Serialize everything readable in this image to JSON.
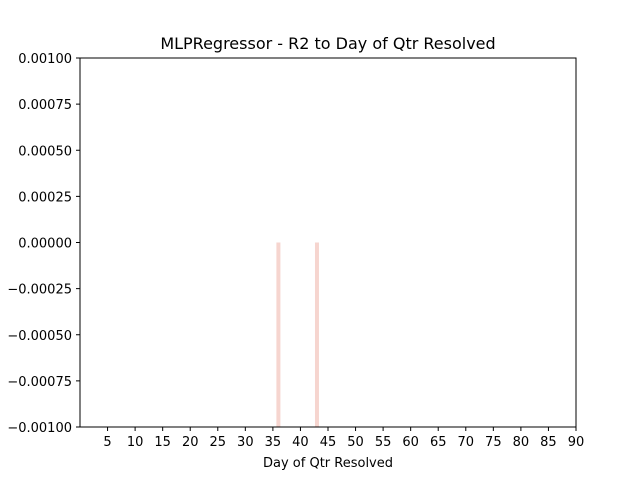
{
  "chart_data": {
    "type": "bar",
    "title": "MLPRegressor - R2 to Day of Qtr Resolved",
    "xlabel": "Day of Qtr Resolved",
    "ylabel": "",
    "xlim": [
      0,
      90
    ],
    "ylim": [
      -0.001,
      0.001
    ],
    "xticks": [
      5,
      10,
      15,
      20,
      25,
      30,
      35,
      40,
      45,
      50,
      55,
      60,
      65,
      70,
      75,
      80,
      85,
      90
    ],
    "xtick_labels": [
      "5",
      "10",
      "15",
      "20",
      "25",
      "30",
      "35",
      "40",
      "45",
      "50",
      "55",
      "60",
      "65",
      "70",
      "75",
      "80",
      "85",
      "90"
    ],
    "yticks": [
      -0.001,
      -0.00075,
      -0.0005,
      -0.00025,
      0,
      0.00025,
      0.0005,
      0.00075,
      0.001
    ],
    "ytick_labels": [
      "−0.00100",
      "−0.00075",
      "−0.00050",
      "−0.00025",
      "0.00000",
      "0.00025",
      "0.00050",
      "0.00075",
      "0.00100"
    ],
    "bars": [
      {
        "x": 36,
        "top": 0,
        "bottom": -0.001
      },
      {
        "x": 43,
        "top": 0,
        "bottom": -0.001
      }
    ],
    "bar_color": "#f6d5cf",
    "grid": false,
    "legend": "none"
  }
}
